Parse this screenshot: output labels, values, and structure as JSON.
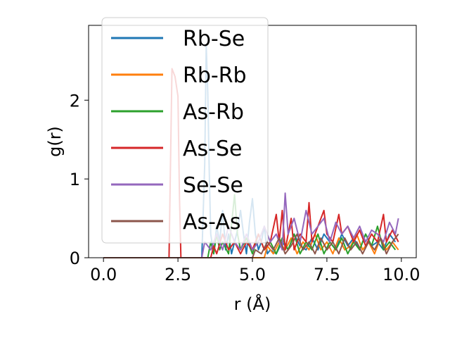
{
  "chart_data": {
    "type": "line",
    "xlabel": "r (Å)",
    "ylabel": "g(r)",
    "xlim": [
      -0.5,
      10.5
    ],
    "ylim": [
      0,
      2.95
    ],
    "xticks": [
      0.0,
      2.5,
      5.0,
      7.5,
      10.0
    ],
    "xtick_labels": [
      "0.0",
      "2.5",
      "5.0",
      "7.5",
      "10.0"
    ],
    "yticks": [
      0,
      1,
      2
    ],
    "ytick_labels": [
      "0",
      "1",
      "2"
    ],
    "legend": {
      "placement": "upper-left"
    },
    "series": [
      {
        "name": "Rb-Se",
        "color": "#1f77b4",
        "points": [
          [
            0,
            0
          ],
          [
            3.3,
            0
          ],
          [
            3.4,
            1.2
          ],
          [
            3.45,
            2.7
          ],
          [
            3.5,
            2.1
          ],
          [
            3.55,
            1.1
          ],
          [
            3.6,
            0.3
          ],
          [
            3.7,
            0.05
          ],
          [
            3.8,
            0.4
          ],
          [
            3.9,
            0.2
          ],
          [
            4.0,
            0.6
          ],
          [
            4.1,
            0.1
          ],
          [
            4.2,
            0.3
          ],
          [
            4.3,
            0.05
          ],
          [
            4.4,
            0.2
          ],
          [
            4.5,
            0.35
          ],
          [
            4.6,
            0.6
          ],
          [
            4.7,
            0.3
          ],
          [
            4.8,
            0.05
          ],
          [
            4.9,
            0.45
          ],
          [
            5.0,
            0.75
          ],
          [
            5.1,
            0.3
          ],
          [
            5.2,
            0.1
          ],
          [
            5.3,
            0.2
          ],
          [
            5.4,
            0.4
          ],
          [
            5.5,
            0.05
          ],
          [
            5.6,
            0.1
          ],
          [
            5.8,
            0.05
          ],
          [
            6.0,
            0.2
          ],
          [
            6.2,
            0.1
          ],
          [
            6.4,
            0.3
          ],
          [
            6.6,
            0.15
          ],
          [
            6.8,
            0.1
          ],
          [
            7.0,
            0.25
          ],
          [
            7.2,
            0.1
          ],
          [
            7.4,
            0.3
          ],
          [
            7.6,
            0.2
          ],
          [
            7.8,
            0.1
          ],
          [
            8.0,
            0.3
          ],
          [
            8.2,
            0.15
          ],
          [
            8.4,
            0.25
          ],
          [
            8.6,
            0.1
          ],
          [
            8.8,
            0.3
          ],
          [
            9.0,
            0.15
          ],
          [
            9.2,
            0.2
          ],
          [
            9.4,
            0.1
          ],
          [
            9.6,
            0.3
          ],
          [
            9.8,
            0.2
          ]
        ]
      },
      {
        "name": "Rb-Rb",
        "color": "#ff7f0e",
        "points": [
          [
            0,
            0
          ],
          [
            5.4,
            0
          ],
          [
            5.5,
            0.15
          ],
          [
            5.7,
            0.05
          ],
          [
            5.9,
            0.2
          ],
          [
            6.1,
            0.1
          ],
          [
            6.3,
            0.25
          ],
          [
            6.5,
            0.05
          ],
          [
            6.7,
            0.2
          ],
          [
            6.9,
            0.1
          ],
          [
            7.1,
            0.3
          ],
          [
            7.3,
            0.1
          ],
          [
            7.5,
            0.2
          ],
          [
            7.7,
            0.05
          ],
          [
            7.9,
            0.25
          ],
          [
            8.1,
            0.1
          ],
          [
            8.3,
            0.15
          ],
          [
            8.5,
            0.3
          ],
          [
            8.7,
            0.1
          ],
          [
            8.9,
            0.2
          ],
          [
            9.1,
            0.05
          ],
          [
            9.3,
            0.25
          ],
          [
            9.5,
            0.1
          ],
          [
            9.7,
            0.2
          ],
          [
            9.9,
            0.1
          ]
        ]
      },
      {
        "name": "As-Rb",
        "color": "#2ca02c",
        "points": [
          [
            0,
            0
          ],
          [
            3.5,
            0
          ],
          [
            3.6,
            0.2
          ],
          [
            3.7,
            0.05
          ],
          [
            3.8,
            0.3
          ],
          [
            3.9,
            0.1
          ],
          [
            4.0,
            0.2
          ],
          [
            4.2,
            0.05
          ],
          [
            4.4,
            0.8
          ],
          [
            4.5,
            0.3
          ],
          [
            4.6,
            0.1
          ],
          [
            4.8,
            0.25
          ],
          [
            5.0,
            0.05
          ],
          [
            5.2,
            0.3
          ],
          [
            5.4,
            0.1
          ],
          [
            5.6,
            0.2
          ],
          [
            5.8,
            0.05
          ],
          [
            6.0,
            0.25
          ],
          [
            6.2,
            0.1
          ],
          [
            6.4,
            0.3
          ],
          [
            6.6,
            0.05
          ],
          [
            6.8,
            0.2
          ],
          [
            7.0,
            0.1
          ],
          [
            7.2,
            0.3
          ],
          [
            7.4,
            0.05
          ],
          [
            7.6,
            0.2
          ],
          [
            7.8,
            0.1
          ],
          [
            8.0,
            0.25
          ],
          [
            8.2,
            0.05
          ],
          [
            8.4,
            0.2
          ],
          [
            8.6,
            0.1
          ],
          [
            8.8,
            0.3
          ],
          [
            9.0,
            0.15
          ],
          [
            9.2,
            0.4
          ],
          [
            9.4,
            0.1
          ],
          [
            9.6,
            0.2
          ],
          [
            9.8,
            0.1
          ]
        ]
      },
      {
        "name": "As-Se",
        "color": "#d62728",
        "points": [
          [
            0,
            0
          ],
          [
            2.2,
            0
          ],
          [
            2.3,
            2.4
          ],
          [
            2.4,
            2.3
          ],
          [
            2.5,
            2.05
          ],
          [
            2.55,
            0.8
          ],
          [
            2.6,
            0
          ],
          [
            3.6,
            0
          ],
          [
            3.7,
            0.15
          ],
          [
            3.8,
            0.05
          ],
          [
            4.0,
            0.3
          ],
          [
            4.2,
            0.1
          ],
          [
            4.4,
            0.2
          ],
          [
            4.6,
            0.05
          ],
          [
            4.8,
            0.2
          ],
          [
            5.0,
            0.1
          ],
          [
            5.2,
            0.3
          ],
          [
            5.4,
            0.1
          ],
          [
            5.6,
            0.2
          ],
          [
            5.8,
            0.55
          ],
          [
            5.9,
            0.2
          ],
          [
            6.0,
            0.6
          ],
          [
            6.1,
            0.1
          ],
          [
            6.3,
            0.5
          ],
          [
            6.4,
            0.1
          ],
          [
            6.6,
            0.3
          ],
          [
            6.8,
            0.2
          ],
          [
            6.9,
            0.7
          ],
          [
            7.0,
            0.2
          ],
          [
            7.2,
            0.4
          ],
          [
            7.4,
            0.6
          ],
          [
            7.5,
            0.3
          ],
          [
            7.7,
            0.2
          ],
          [
            7.9,
            0.55
          ],
          [
            8.0,
            0.3
          ],
          [
            8.2,
            0.4
          ],
          [
            8.4,
            0.2
          ],
          [
            8.6,
            0.35
          ],
          [
            8.8,
            0.15
          ],
          [
            9.0,
            0.3
          ],
          [
            9.2,
            0.2
          ],
          [
            9.4,
            0.55
          ],
          [
            9.5,
            0.2
          ],
          [
            9.7,
            0.35
          ],
          [
            9.9,
            0.2
          ]
        ]
      },
      {
        "name": "Se-Se",
        "color": "#9467bd",
        "points": [
          [
            0,
            0
          ],
          [
            3.3,
            0
          ],
          [
            3.4,
            0.2
          ],
          [
            3.6,
            0.1
          ],
          [
            3.8,
            0.3
          ],
          [
            4.0,
            0.1
          ],
          [
            4.2,
            0.4
          ],
          [
            4.4,
            0.2
          ],
          [
            4.6,
            0.1
          ],
          [
            4.8,
            0.3
          ],
          [
            5.0,
            0.1
          ],
          [
            5.2,
            0.2
          ],
          [
            5.4,
            0.4
          ],
          [
            5.6,
            0.2
          ],
          [
            5.8,
            0.3
          ],
          [
            6.0,
            0.1
          ],
          [
            6.1,
            0.82
          ],
          [
            6.2,
            0.3
          ],
          [
            6.4,
            0.5
          ],
          [
            6.6,
            0.2
          ],
          [
            6.8,
            0.6
          ],
          [
            7.0,
            0.3
          ],
          [
            7.2,
            0.4
          ],
          [
            7.4,
            0.5
          ],
          [
            7.6,
            0.2
          ],
          [
            7.8,
            0.45
          ],
          [
            8.0,
            0.3
          ],
          [
            8.2,
            0.4
          ],
          [
            8.4,
            0.25
          ],
          [
            8.6,
            0.4
          ],
          [
            8.8,
            0.2
          ],
          [
            9.0,
            0.35
          ],
          [
            9.2,
            0.3
          ],
          [
            9.4,
            0.2
          ],
          [
            9.6,
            0.45
          ],
          [
            9.8,
            0.3
          ],
          [
            9.9,
            0.5
          ]
        ]
      },
      {
        "name": "As-As",
        "color": "#8c564b",
        "points": [
          [
            0,
            0
          ],
          [
            5.0,
            0
          ],
          [
            5.1,
            0.1
          ],
          [
            5.3,
            0.05
          ],
          [
            5.5,
            0.2
          ],
          [
            5.7,
            0.1
          ],
          [
            5.9,
            0.25
          ],
          [
            6.1,
            0.05
          ],
          [
            6.3,
            0.15
          ],
          [
            6.5,
            0.3
          ],
          [
            6.7,
            0.1
          ],
          [
            6.9,
            0.2
          ],
          [
            7.1,
            0.05
          ],
          [
            7.3,
            0.25
          ],
          [
            7.5,
            0.1
          ],
          [
            7.7,
            0.2
          ],
          [
            7.9,
            0.05
          ],
          [
            8.1,
            0.25
          ],
          [
            8.3,
            0.1
          ],
          [
            8.5,
            0.2
          ],
          [
            8.7,
            0.05
          ],
          [
            8.9,
            0.2
          ],
          [
            9.1,
            0.1
          ],
          [
            9.3,
            0.25
          ],
          [
            9.5,
            0.05
          ],
          [
            9.7,
            0.2
          ],
          [
            9.9,
            0.3
          ]
        ]
      }
    ]
  }
}
